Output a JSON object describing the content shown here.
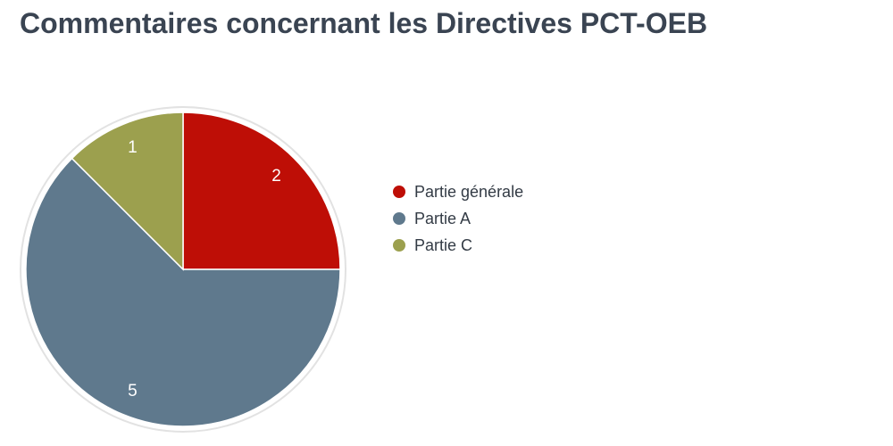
{
  "chart_data": {
    "type": "pie",
    "title": "Commentaires concernant les Directives PCT-OEB",
    "series": [
      {
        "name": "Partie générale",
        "value": 2,
        "color": "#be0e06"
      },
      {
        "name": "Partie A",
        "value": 5,
        "color": "#5f798d"
      },
      {
        "name": "Partie C",
        "value": 1,
        "color": "#9ca04e"
      }
    ],
    "legend_position": "right",
    "start_angle_deg": 0,
    "direction": "clockwise",
    "data_labels": "inside"
  }
}
